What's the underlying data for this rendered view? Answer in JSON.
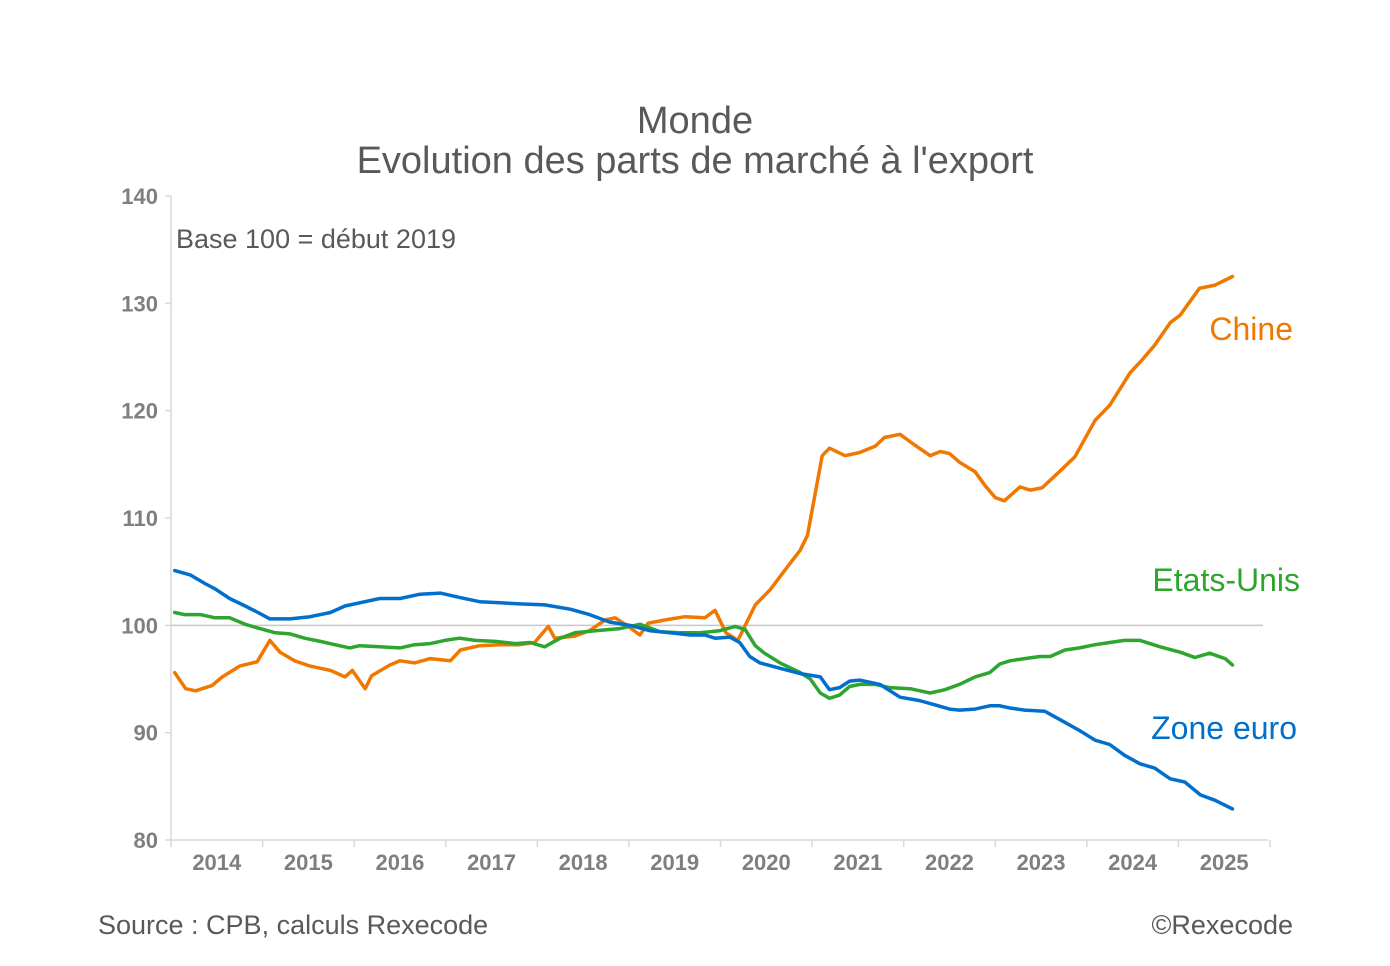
{
  "chart_data": {
    "type": "line",
    "title": "Monde",
    "subtitle": "Evolution des parts de marché à l'export",
    "annotation": "Base 100 = début 2019",
    "xlabel": "",
    "ylabel": "",
    "xlim": [
      2014,
      2026
    ],
    "ylim": [
      80,
      140
    ],
    "yticks": [
      80,
      90,
      100,
      110,
      120,
      130,
      140
    ],
    "xtick_labels": [
      "2014",
      "2015",
      "2016",
      "2017",
      "2018",
      "2019",
      "2020",
      "2021",
      "2022",
      "2023",
      "2024",
      "2025"
    ],
    "reference_line": 100,
    "grid": false,
    "legend": "inline labels at right end of series",
    "series": [
      {
        "name": "Chine",
        "color": "#F07800",
        "x": [
          2014.04,
          2014.16,
          2014.27,
          2014.45,
          2014.56,
          2014.75,
          2014.94,
          2015.08,
          2015.19,
          2015.35,
          2015.52,
          2015.74,
          2015.9,
          2015.98,
          2016.12,
          2016.19,
          2016.39,
          2016.5,
          2016.66,
          2016.83,
          2017.05,
          2017.16,
          2017.37,
          2017.59,
          2017.81,
          2017.97,
          2018.12,
          2018.19,
          2018.41,
          2018.57,
          2018.74,
          2018.85,
          2018.96,
          2019.12,
          2019.21,
          2019.39,
          2019.61,
          2019.83,
          2019.94,
          2020.06,
          2020.19,
          2020.38,
          2020.54,
          2020.7,
          2020.87,
          2020.95,
          2021.11,
          2021.19,
          2021.36,
          2021.52,
          2021.69,
          2021.79,
          2021.96,
          2022.12,
          2022.29,
          2022.4,
          2022.5,
          2022.61,
          2022.78,
          2022.89,
          2023.0,
          2023.1,
          2023.27,
          2023.38,
          2023.51,
          2023.71,
          2023.87,
          2024.09,
          2024.25,
          2024.47,
          2024.6,
          2024.74,
          2024.91,
          2025.02,
          2025.12,
          2025.23,
          2025.4,
          2025.59
        ],
        "y": [
          95.6,
          94.1,
          93.9,
          94.4,
          95.2,
          96.2,
          96.6,
          98.6,
          97.5,
          96.7,
          96.2,
          95.8,
          95.2,
          95.8,
          94.1,
          95.3,
          96.3,
          96.7,
          96.5,
          96.9,
          96.7,
          97.7,
          98.1,
          98.2,
          98.2,
          98.4,
          99.9,
          98.8,
          99.0,
          99.5,
          100.5,
          100.7,
          100.1,
          99.1,
          100.2,
          100.5,
          100.8,
          100.7,
          101.4,
          99.3,
          98.6,
          101.9,
          103.3,
          105.1,
          107.0,
          108.4,
          115.8,
          116.5,
          115.8,
          116.1,
          116.7,
          117.5,
          117.8,
          116.8,
          115.8,
          116.2,
          116.0,
          115.2,
          114.3,
          113.0,
          111.9,
          111.6,
          112.9,
          112.6,
          112.8,
          114.4,
          115.7,
          119.1,
          120.5,
          123.5,
          124.7,
          126.1,
          128.2,
          128.9,
          130.1,
          131.4,
          131.7,
          132.5
        ]
      },
      {
        "name": "Etats-Unis",
        "color": "#2EA52E",
        "x": [
          2014.04,
          2014.15,
          2014.32,
          2014.48,
          2014.64,
          2014.81,
          2014.97,
          2015.14,
          2015.3,
          2015.46,
          2015.63,
          2015.79,
          2015.95,
          2016.06,
          2016.28,
          2016.5,
          2016.66,
          2016.83,
          2016.99,
          2017.15,
          2017.32,
          2017.54,
          2017.76,
          2017.92,
          2018.08,
          2018.25,
          2018.41,
          2018.63,
          2018.9,
          2019.12,
          2019.34,
          2019.56,
          2019.78,
          2019.99,
          2020.16,
          2020.27,
          2020.38,
          2020.48,
          2020.65,
          2020.87,
          2020.98,
          2021.09,
          2021.19,
          2021.3,
          2021.41,
          2021.52,
          2021.69,
          2021.85,
          2022.07,
          2022.29,
          2022.45,
          2022.61,
          2022.78,
          2022.94,
          2023.05,
          2023.16,
          2023.32,
          2023.49,
          2023.6,
          2023.76,
          2023.92,
          2024.09,
          2024.25,
          2024.41,
          2024.58,
          2024.8,
          2025.02,
          2025.18,
          2025.34,
          2025.51,
          2025.59
        ],
        "y": [
          101.2,
          101.0,
          101.0,
          100.7,
          100.7,
          100.1,
          99.7,
          99.3,
          99.2,
          98.8,
          98.5,
          98.2,
          97.9,
          98.1,
          98.0,
          97.9,
          98.2,
          98.3,
          98.6,
          98.8,
          98.6,
          98.5,
          98.3,
          98.4,
          98.0,
          98.8,
          99.3,
          99.5,
          99.7,
          100.1,
          99.4,
          99.3,
          99.3,
          99.5,
          99.9,
          99.6,
          98.1,
          97.4,
          96.5,
          95.6,
          95.0,
          93.7,
          93.2,
          93.5,
          94.3,
          94.5,
          94.5,
          94.2,
          94.1,
          93.7,
          94.0,
          94.5,
          95.2,
          95.6,
          96.4,
          96.7,
          96.9,
          97.1,
          97.1,
          97.7,
          97.9,
          98.2,
          98.4,
          98.6,
          98.6,
          98.0,
          97.5,
          97.0,
          97.4,
          96.9,
          96.3
        ]
      },
      {
        "name": "Zone euro",
        "color": "#0070CC",
        "x": [
          2014.04,
          2014.21,
          2014.37,
          2014.48,
          2014.64,
          2014.81,
          2014.95,
          2015.08,
          2015.3,
          2015.52,
          2015.74,
          2015.9,
          2016.06,
          2016.28,
          2016.5,
          2016.72,
          2016.94,
          2017.15,
          2017.37,
          2017.59,
          2017.81,
          2018.08,
          2018.36,
          2018.57,
          2018.79,
          2019.01,
          2019.23,
          2019.45,
          2019.67,
          2019.83,
          2019.94,
          2020.1,
          2020.21,
          2020.32,
          2020.43,
          2020.65,
          2020.87,
          2021.09,
          2021.19,
          2021.3,
          2021.41,
          2021.52,
          2021.74,
          2021.96,
          2022.17,
          2022.34,
          2022.5,
          2022.61,
          2022.78,
          2022.94,
          2023.05,
          2023.16,
          2023.32,
          2023.54,
          2023.71,
          2023.92,
          2024.09,
          2024.25,
          2024.41,
          2024.58,
          2024.74,
          2024.91,
          2025.07,
          2025.24,
          2025.4,
          2025.59
        ],
        "y": [
          105.1,
          104.7,
          103.9,
          103.4,
          102.5,
          101.8,
          101.2,
          100.6,
          100.6,
          100.8,
          101.2,
          101.8,
          102.1,
          102.5,
          102.5,
          102.9,
          103.0,
          102.6,
          102.2,
          102.1,
          102.0,
          101.9,
          101.5,
          101.0,
          100.3,
          100.0,
          99.5,
          99.3,
          99.1,
          99.1,
          98.8,
          98.9,
          98.4,
          97.1,
          96.5,
          96.0,
          95.5,
          95.2,
          94.0,
          94.2,
          94.8,
          94.9,
          94.5,
          93.3,
          93.0,
          92.6,
          92.2,
          92.1,
          92.2,
          92.5,
          92.5,
          92.3,
          92.1,
          92.0,
          91.2,
          90.2,
          89.3,
          88.9,
          87.9,
          87.1,
          86.7,
          85.7,
          85.4,
          84.2,
          83.7,
          82.9
        ]
      }
    ]
  },
  "footer": {
    "source": "Source : CPB, calculs Rexecode",
    "copyright": "©Rexecode"
  }
}
